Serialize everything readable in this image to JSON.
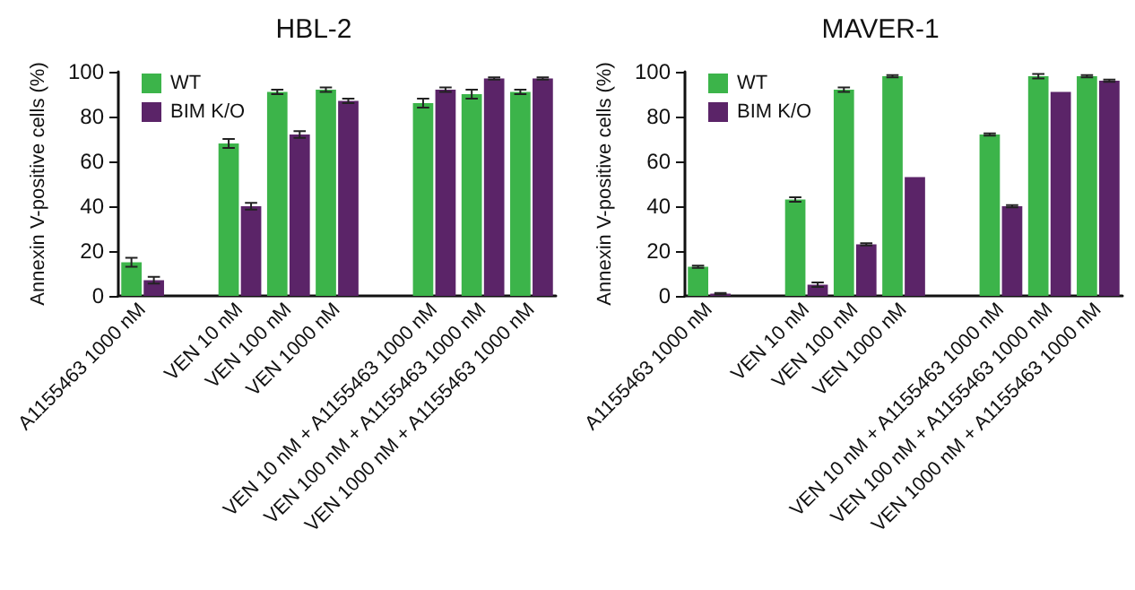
{
  "chart_data": [
    {
      "type": "bar",
      "title": "HBL-2",
      "ylabel": "Annexin V-positive cells (%)",
      "categories": [
        "A1155463 1000 nM",
        null,
        "VEN 10 nM",
        "VEN 100 nM",
        "VEN 1000 nM",
        null,
        "VEN 10 nM + A1155463 1000 nM",
        "VEN 100 nM + A1155463 1000 nM",
        "VEN 1000 nM + A1155463 1000 nM"
      ],
      "ylim": [
        0,
        100
      ],
      "yticks": [
        0,
        20,
        40,
        60,
        80,
        100
      ],
      "grid": false,
      "legend": "top left",
      "series": [
        {
          "name": "WT",
          "color": "#3cb44a",
          "values": [
            15,
            null,
            68,
            91,
            92,
            null,
            86,
            90,
            91
          ],
          "errors": [
            2,
            null,
            2,
            1,
            1,
            null,
            2,
            2,
            1
          ]
        },
        {
          "name": "BIM K/O",
          "color": "#5b2468",
          "values": [
            7,
            null,
            40,
            72,
            87,
            null,
            92,
            97,
            97
          ],
          "errors": [
            1.5,
            null,
            1.5,
            1.5,
            1,
            null,
            1,
            0.5,
            0.5
          ]
        }
      ]
    },
    {
      "type": "bar",
      "title": "MAVER-1",
      "ylabel": "Annexin V-positive cells (%)",
      "categories": [
        "A1155463 1000 nM",
        null,
        "VEN 10 nM",
        "VEN 100 nM",
        "VEN 1000 nM",
        null,
        "VEN 10 nM + A1155463 1000 nM",
        "VEN 100 nM + A1155463 1000 nM",
        "VEN 1000 nM + A1155463 1000 nM"
      ],
      "ylim": [
        0,
        100
      ],
      "yticks": [
        0,
        20,
        40,
        60,
        80,
        100
      ],
      "grid": false,
      "legend": "top left",
      "series": [
        {
          "name": "WT",
          "color": "#3cb44a",
          "values": [
            13,
            null,
            43,
            92,
            98,
            null,
            72,
            98,
            98
          ],
          "errors": [
            0.5,
            null,
            1,
            1,
            0.5,
            null,
            0.5,
            1,
            0.5
          ]
        },
        {
          "name": "BIM K/O",
          "color": "#5b2468",
          "values": [
            1,
            null,
            5,
            23,
            53,
            null,
            40,
            91,
            96
          ],
          "errors": [
            0.3,
            null,
            1,
            0.5,
            null,
            null,
            0.5,
            null,
            0.5
          ]
        }
      ]
    }
  ]
}
